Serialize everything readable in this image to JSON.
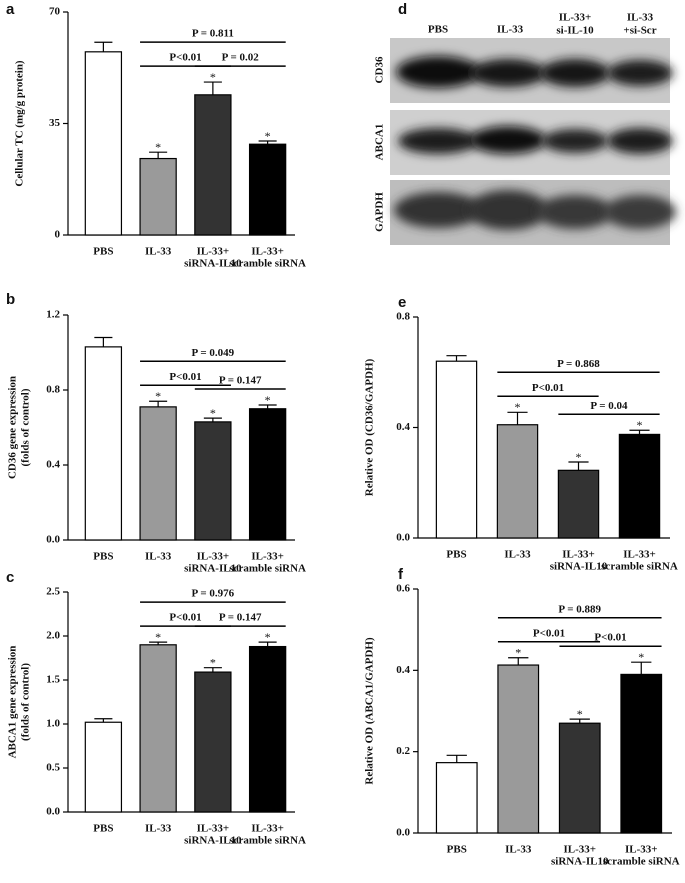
{
  "chart_data": [
    {
      "type": "bar",
      "label": "a",
      "ylabel": [
        "Cellular TC (mg/g protein)"
      ],
      "categories": [
        [
          "PBS"
        ],
        [
          "IL-33"
        ],
        [
          "IL-33+",
          "siRNA-IL10"
        ],
        [
          "IL-33+",
          "scramble  siRNA"
        ]
      ],
      "values": [
        57.5,
        24,
        44,
        28.5
      ],
      "errors": [
        3,
        2,
        4,
        1
      ],
      "colors": [
        "#ffffff",
        "#9a9a9a",
        "#333333",
        "#000000"
      ],
      "ylim": [
        0,
        70
      ],
      "yticks": [
        0,
        35,
        70
      ],
      "brackets": [
        {
          "from": 1,
          "to": 3,
          "label": "P = 0.811"
        },
        {
          "from": 1,
          "to": 2,
          "label": "P<0.01"
        },
        {
          "from": 2,
          "to": 3,
          "label": "P = 0.02"
        }
      ],
      "star": "*",
      "starred": [
        1,
        2,
        3
      ]
    },
    {
      "type": "bar",
      "label": "b",
      "ylabel": [
        "CD36 gene expression",
        "(folds of control)"
      ],
      "categories": [
        [
          "PBS"
        ],
        [
          "IL-33"
        ],
        [
          "IL-33+",
          "siRNA-IL10"
        ],
        [
          "IL-33+",
          "scramble siRNA"
        ]
      ],
      "values": [
        1.03,
        0.71,
        0.63,
        0.7
      ],
      "errors": [
        0.05,
        0.03,
        0.02,
        0.02
      ],
      "colors": [
        "#ffffff",
        "#9a9a9a",
        "#333333",
        "#000000"
      ],
      "ylim": [
        0,
        1.2
      ],
      "yticks": [
        {
          "value": 0,
          "label": "0.0"
        },
        0.4,
        0.8,
        1.2
      ],
      "brackets": [
        {
          "from": 1,
          "to": 3,
          "label": "P = 0.049"
        },
        {
          "from": 1,
          "to": 2,
          "label": "P<0.01"
        },
        {
          "from": 2,
          "to": 3,
          "label": "P = 0.147"
        }
      ],
      "star": "*",
      "starred": [
        1,
        2,
        3
      ]
    },
    {
      "type": "bar",
      "label": "c",
      "ylabel": [
        "ABCA1 gene expression",
        "(folds of control)"
      ],
      "categories": [
        [
          "PBS"
        ],
        [
          "IL-33"
        ],
        [
          "IL-33+",
          "siRNA-IL10"
        ],
        [
          "IL-33+",
          "scramble siRNA"
        ]
      ],
      "values": [
        1.02,
        1.9,
        1.59,
        1.88
      ],
      "errors": [
        0.04,
        0.03,
        0.05,
        0.05
      ],
      "colors": [
        "#ffffff",
        "#9a9a9a",
        "#333333",
        "#000000"
      ],
      "ylim": [
        0,
        2.5
      ],
      "yticks": [
        {
          "value": 0,
          "label": "0.0"
        },
        0.5,
        {
          "value": 1,
          "label": "1.0"
        },
        1.5,
        {
          "value": 2,
          "label": "2.0"
        },
        2.5
      ],
      "brackets": [
        {
          "from": 1,
          "to": 3,
          "label": "P = 0.976"
        },
        {
          "from": 1,
          "to": 2,
          "label": "P<0.01"
        },
        {
          "from": 2,
          "to": 3,
          "label": "P = 0.147"
        }
      ],
      "star": "*",
      "starred": [
        1,
        2,
        3
      ]
    },
    {
      "type": "bar",
      "label": "e",
      "ylabel": [
        "Relative OD (CD36/GAPDH)"
      ],
      "categories": [
        [
          "PBS"
        ],
        [
          "IL-33"
        ],
        [
          "IL-33+",
          "siRNA-IL10"
        ],
        [
          "IL-33+",
          "scramble siRNA"
        ]
      ],
      "values": [
        0.64,
        0.41,
        0.245,
        0.375
      ],
      "errors": [
        0.02,
        0.045,
        0.03,
        0.015
      ],
      "colors": [
        "#ffffff",
        "#9a9a9a",
        "#333333",
        "#000000"
      ],
      "ylim": [
        0,
        0.8
      ],
      "yticks": [
        {
          "value": 0,
          "label": "0.0"
        },
        0.4,
        0.8
      ],
      "brackets": [
        {
          "from": 1,
          "to": 3,
          "label": "P = 0.868"
        },
        {
          "from": 1,
          "to": 2,
          "label": "P<0.01"
        },
        {
          "from": 2,
          "to": 3,
          "label": "P = 0.04"
        }
      ],
      "star": "*",
      "starred": [
        1,
        2,
        3
      ]
    },
    {
      "type": "bar",
      "label": "f",
      "ylabel": [
        "Relative OD (ABCA1/GAPDH)"
      ],
      "categories": [
        [
          "PBS"
        ],
        [
          "IL-33"
        ],
        [
          "IL-33+",
          "siRNA-IL10"
        ],
        [
          "IL-33+",
          "scramble siRNA"
        ]
      ],
      "values": [
        0.173,
        0.413,
        0.27,
        0.39
      ],
      "errors": [
        0.018,
        0.018,
        0.01,
        0.03
      ],
      "colors": [
        "#ffffff",
        "#9a9a9a",
        "#333333",
        "#000000"
      ],
      "ylim": [
        0,
        0.6
      ],
      "yticks": [
        {
          "value": 0,
          "label": "0.0"
        },
        0.2,
        0.4,
        0.6
      ],
      "brackets": [
        {
          "from": 1,
          "to": 3,
          "label": "P = 0.889"
        },
        {
          "from": 1,
          "to": 2,
          "label": "P<0.01"
        },
        {
          "from": 2,
          "to": 3,
          "label": "P<0.01"
        }
      ],
      "star": "*",
      "starred": [
        1,
        2,
        3
      ]
    }
  ],
  "blot": {
    "label": "d",
    "lanes": [
      [
        "PBS"
      ],
      [
        "IL-33"
      ],
      [
        "IL-33+",
        "si-IL-10"
      ],
      [
        "IL-33",
        "+si-Scr"
      ]
    ],
    "rows": [
      "CD36",
      "ABCA1",
      "GAPDH"
    ]
  }
}
